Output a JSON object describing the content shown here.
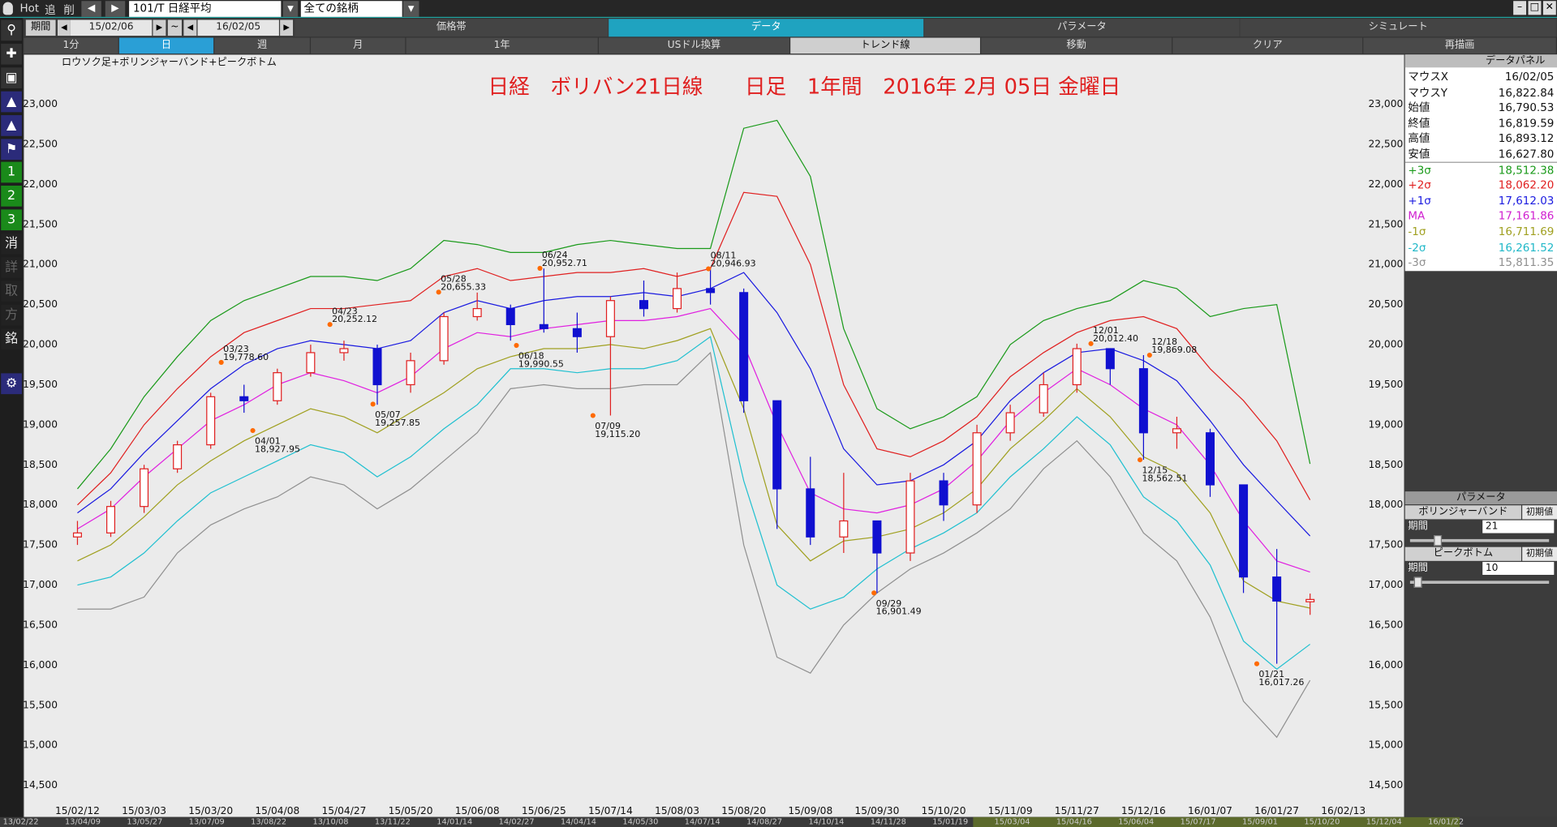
{
  "ui": {
    "toolbar": {
      "items": [
        "Hot",
        "追",
        "削"
      ],
      "symbol": "101/T 日経平均",
      "filter": "全ての銘柄"
    },
    "period": {
      "label": "期間",
      "from": "15/02/06",
      "sep": "~",
      "to": "16/02/05"
    },
    "tabs_top": [
      "価格帯",
      "データ",
      "パラメータ",
      "シミュレート"
    ],
    "tabs_top_active": 1,
    "tabs_bottom": [
      "1分",
      "日",
      "週",
      "月",
      "1年",
      "USドル換算",
      "トレンド線",
      "移動",
      "クリア",
      "再描画"
    ],
    "tabs_bottom_active": 1,
    "sidebar": [
      "1",
      "2",
      "3",
      "消",
      "詳",
      "取",
      "方",
      "銘"
    ],
    "data_panel": {
      "title": "データパネル",
      "rows": [
        {
          "label": "マウスX",
          "value": "16/02/05",
          "color": "#111111"
        },
        {
          "label": "マウスY",
          "value": "16,822.84",
          "color": "#111111"
        },
        {
          "label": "始値",
          "value": "16,790.53",
          "color": "#111111"
        },
        {
          "label": "終値",
          "value": "16,819.59",
          "color": "#111111"
        },
        {
          "label": "高値",
          "value": "16,893.12",
          "color": "#111111"
        },
        {
          "label": "安値",
          "value": "16,627.80",
          "color": "#111111"
        },
        {
          "label": "+3σ",
          "value": "18,512.38",
          "color": "#1a9a1a"
        },
        {
          "label": "+2σ",
          "value": "18,062.20",
          "color": "#e02020"
        },
        {
          "label": "+1σ",
          "value": "17,612.03",
          "color": "#1a1ae0"
        },
        {
          "label": "MA",
          "value": "17,161.86",
          "color": "#d020d0"
        },
        {
          "label": "-1σ",
          "value": "16,711.69",
          "color": "#a0a020"
        },
        {
          "label": "-2σ",
          "value": "16,261.52",
          "color": "#20b8c8"
        },
        {
          "label": "-3σ",
          "value": "15,811.35",
          "color": "#909090"
        }
      ]
    },
    "param_panel": {
      "title": "パラメータ",
      "groups": [
        {
          "name": "ボリンジャーバンド",
          "reset": "初期値",
          "label": "期間",
          "value": "21"
        },
        {
          "name": "ピークボトム",
          "reset": "初期値",
          "label": "期間",
          "value": "10"
        }
      ]
    },
    "scroll_dates": [
      "13/02/22",
      "13/04/09",
      "13/05/27",
      "13/07/09",
      "13/08/22",
      "13/10/08",
      "13/11/22",
      "14/01/14",
      "14/02/27",
      "14/04/14",
      "14/05/30",
      "14/07/14",
      "14/08/27",
      "14/10/14",
      "14/11/28",
      "15/01/19",
      "15/03/04",
      "15/04/16",
      "15/06/04",
      "15/07/17",
      "15/09/01",
      "15/10/20",
      "15/12/04",
      "16/01/22"
    ]
  },
  "chart_data": {
    "type": "candlestick",
    "title": "日経　ボリバン21日線　　日足　1年間　2016年 2月 05日 金曜日",
    "subtitle": "ロウソク足+ボリンジャーバンド+ピークボトム",
    "categories": [
      "15/02/12",
      null,
      "15/03/03",
      null,
      "15/03/20",
      null,
      "15/04/08",
      null,
      "15/04/27",
      null,
      "15/05/20",
      null,
      "15/06/08",
      null,
      "15/06/25",
      null,
      "15/07/14",
      null,
      "15/08/03",
      null,
      "15/08/20",
      null,
      "15/09/08",
      null,
      "15/09/30",
      null,
      "15/10/20",
      null,
      "15/11/09",
      null,
      "15/11/27",
      null,
      "15/12/16",
      null,
      "16/01/07",
      null,
      "16/01/27",
      null,
      "16/02/13"
    ],
    "open": [
      17600,
      17650,
      17980,
      18450,
      18750,
      19350,
      19300,
      19650,
      19900,
      19950,
      19500,
      19800,
      20350,
      20450,
      20250,
      20200,
      20100,
      20550,
      20450,
      20700,
      20650,
      19300,
      18200,
      17600,
      17800,
      17400,
      18300,
      18000,
      18900,
      19150,
      19500,
      19950,
      19700,
      18900,
      18900,
      18250,
      17100,
      16790.53,
      null
    ],
    "high": [
      17800,
      18050,
      18500,
      18800,
      19400,
      19500,
      19700,
      20000,
      20050,
      20000,
      19900,
      20400,
      20650,
      20500,
      20950,
      20400,
      20600,
      20800,
      20900,
      20946,
      20700,
      19300,
      18600,
      18400,
      17800,
      18400,
      18400,
      19000,
      19250,
      19650,
      20012,
      19950,
      19869,
      19100,
      18950,
      18250,
      17450,
      16893.12,
      null
    ],
    "low": [
      17500,
      17600,
      17900,
      18400,
      18700,
      19150,
      19250,
      19600,
      19800,
      19250,
      19400,
      19750,
      20300,
      20050,
      20150,
      19900,
      19115,
      20350,
      20400,
      20500,
      19150,
      17700,
      17500,
      17400,
      16900,
      17300,
      17800,
      17900,
      18800,
      19100,
      19400,
      19500,
      18562,
      18700,
      18100,
      16900,
      16017,
      16627.8,
      null
    ],
    "close": [
      17650,
      17980,
      18450,
      18750,
      19350,
      19300,
      19650,
      19900,
      19950,
      19500,
      19800,
      20350,
      20450,
      20250,
      20200,
      20100,
      20550,
      20450,
      20700,
      20650,
      19300,
      18200,
      17600,
      17800,
      17400,
      18300,
      18000,
      18900,
      19150,
      19500,
      19950,
      19700,
      18900,
      18950,
      18250,
      17100,
      16800,
      16819.59,
      null
    ],
    "up_color": "#e02020",
    "down_color": "#1010d0",
    "series": [
      {
        "color": "#1a9a1a",
        "values": [
          18200,
          18700,
          19350,
          19850,
          20300,
          20550,
          20700,
          20850,
          20850,
          20800,
          20950,
          21300,
          21250,
          21150,
          21150,
          21250,
          21300,
          21250,
          21200,
          21200,
          22700,
          22800,
          22100,
          20200,
          19200,
          18950,
          19100,
          19350,
          20000,
          20300,
          20450,
          20550,
          20800,
          20700,
          20350,
          20450,
          20500,
          18512.38,
          null
        ]
      },
      {
        "color": "#e02020",
        "values": [
          18000,
          18400,
          19000,
          19450,
          19850,
          20150,
          20300,
          20450,
          20450,
          20500,
          20550,
          20850,
          20950,
          20800,
          20850,
          20900,
          20900,
          20950,
          20850,
          20950,
          21900,
          21850,
          21000,
          19500,
          18700,
          18600,
          18800,
          19100,
          19600,
          19900,
          20150,
          20300,
          20350,
          20200,
          19700,
          19300,
          18800,
          18062.2,
          null
        ]
      },
      {
        "color": "#1a1ae0",
        "values": [
          17900,
          18200,
          18650,
          19050,
          19450,
          19750,
          19950,
          20050,
          20000,
          19950,
          20050,
          20400,
          20550,
          20450,
          20550,
          20600,
          20600,
          20650,
          20600,
          20700,
          20900,
          20400,
          19700,
          18700,
          18250,
          18300,
          18500,
          18800,
          19300,
          19650,
          19900,
          19950,
          19800,
          19550,
          19050,
          18500,
          18050,
          17612.03,
          null
        ]
      },
      {
        "color": "#e020e0",
        "values": [
          17700,
          17950,
          18350,
          18700,
          19050,
          19250,
          19500,
          19650,
          19550,
          19400,
          19600,
          19950,
          20150,
          20100,
          20200,
          20250,
          20300,
          20300,
          20350,
          20450,
          20000,
          19000,
          18150,
          17950,
          17900,
          18000,
          18200,
          18550,
          19050,
          19400,
          19700,
          19500,
          19200,
          19000,
          18500,
          17800,
          17300,
          17161.86,
          null
        ]
      },
      {
        "color": "#a0a020",
        "values": [
          17300,
          17500,
          17850,
          18250,
          18550,
          18800,
          19000,
          19200,
          19100,
          18900,
          19150,
          19400,
          19700,
          19850,
          19950,
          19950,
          20000,
          19950,
          20050,
          20200,
          19200,
          17750,
          17300,
          17550,
          17600,
          17700,
          17900,
          18200,
          18700,
          19050,
          19450,
          19100,
          18600,
          18400,
          17900,
          17050,
          16800,
          16711.69,
          null
        ]
      },
      {
        "color": "#20c0d0",
        "values": [
          17000,
          17100,
          17400,
          17800,
          18150,
          18350,
          18550,
          18750,
          18650,
          18350,
          18600,
          18950,
          19250,
          19700,
          19700,
          19650,
          19700,
          19700,
          19800,
          20100,
          18300,
          17000,
          16700,
          16850,
          17200,
          17450,
          17650,
          17900,
          18350,
          18700,
          19100,
          18750,
          18100,
          17800,
          17250,
          16300,
          15950,
          16261.52,
          null
        ]
      },
      {
        "color": "#909090",
        "values": [
          16700,
          16700,
          16850,
          17400,
          17750,
          17950,
          18100,
          18350,
          18250,
          17950,
          18200,
          18550,
          18900,
          19450,
          19500,
          19450,
          19450,
          19500,
          19500,
          19900,
          17500,
          16100,
          15900,
          16500,
          16900,
          17200,
          17400,
          17650,
          17950,
          18450,
          18800,
          18350,
          17650,
          17300,
          16600,
          15550,
          15100,
          15811.35,
          null
        ]
      }
    ],
    "annotations": [
      {
        "kind": "peak",
        "date": "03/23",
        "value": 19778.6,
        "label": "19,778.60"
      },
      {
        "kind": "bottom",
        "date": "04/01",
        "value": 18927.95,
        "label": "18,927.95"
      },
      {
        "kind": "peak",
        "date": "04/23",
        "value": 20252.12,
        "label": "20,252.12"
      },
      {
        "kind": "bottom",
        "date": "05/07",
        "value": 19257.85,
        "label": "19,257.85"
      },
      {
        "kind": "peak",
        "date": "05/28",
        "value": 20655.33,
        "label": "20,655.33"
      },
      {
        "kind": "bottom",
        "date": "06/18",
        "value": 19990.55,
        "label": "19,990.55"
      },
      {
        "kind": "peak",
        "date": "06/24",
        "value": 20952.71,
        "label": "20,952.71"
      },
      {
        "kind": "bottom",
        "date": "07/09",
        "value": 19115.2,
        "label": "19,115.20"
      },
      {
        "kind": "peak",
        "date": "08/11",
        "value": 20946.93,
        "label": "20,946.93"
      },
      {
        "kind": "bottom",
        "date": "09/29",
        "value": 16901.49,
        "label": "16,901.49"
      },
      {
        "kind": "peak",
        "date": "12/01",
        "value": 20012.4,
        "label": "20,012.40"
      },
      {
        "kind": "bottom",
        "date": "12/15",
        "value": 18562.51,
        "label": "18,562.51"
      },
      {
        "kind": "peak",
        "date": "12/18",
        "value": 19869.08,
        "label": "19,869.08"
      },
      {
        "kind": "bottom",
        "date": "01/21",
        "value": 16017.26,
        "label": "16,017.26"
      }
    ],
    "annotation_color": "#ff6a00",
    "ylim": [
      14240,
      23620
    ],
    "yticks": [
      {
        "value": 14500,
        "label": "14,500"
      },
      {
        "value": 15000,
        "label": "15,000"
      },
      {
        "value": 15500,
        "label": "15,500"
      },
      {
        "value": 16000,
        "label": "16,000"
      },
      {
        "value": 16500,
        "label": "16,500"
      },
      {
        "value": 17000,
        "label": "17,000"
      },
      {
        "value": 17500,
        "label": "17,500"
      },
      {
        "value": 18000,
        "label": "18,000"
      },
      {
        "value": 18500,
        "label": "18,500"
      },
      {
        "value": 19000,
        "label": "19,000"
      },
      {
        "value": 19500,
        "label": "19,500"
      },
      {
        "value": 20000,
        "label": "20,000"
      },
      {
        "value": 20500,
        "label": "20,500"
      },
      {
        "value": 21000,
        "label": "21,000"
      },
      {
        "value": 21500,
        "label": "21,500"
      },
      {
        "value": 22000,
        "label": "22,000"
      },
      {
        "value": 22500,
        "label": "22,500"
      },
      {
        "value": 23000,
        "label": "23,000"
      }
    ],
    "grid": false
  }
}
